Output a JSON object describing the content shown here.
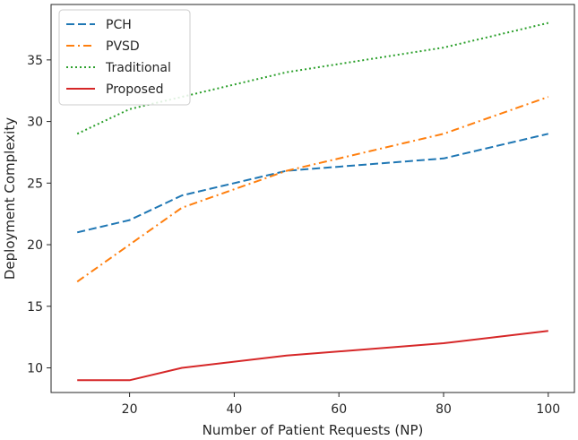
{
  "chart_data": {
    "type": "line",
    "title": "",
    "xlabel": "Number of Patient Requests (NP)",
    "ylabel": "Deployment Complexity",
    "x": [
      10,
      20,
      30,
      50,
      80,
      100
    ],
    "xlim": [
      5,
      105
    ],
    "ylim": [
      8,
      39.5
    ],
    "xticks": [
      20,
      40,
      60,
      80,
      100
    ],
    "yticks": [
      10,
      15,
      20,
      25,
      30,
      35
    ],
    "grid": false,
    "legend_position": "top-left",
    "series": [
      {
        "name": "PCH",
        "values": [
          21,
          22,
          24,
          26,
          27,
          29
        ],
        "color": "#1f77b4",
        "style": "dashed"
      },
      {
        "name": "PVSD",
        "values": [
          17,
          20,
          23,
          26,
          29,
          32
        ],
        "color": "#ff7f0e",
        "style": "dashdot"
      },
      {
        "name": "Traditional",
        "values": [
          29,
          31,
          32,
          34,
          36,
          38
        ],
        "color": "#2ca02c",
        "style": "dotted"
      },
      {
        "name": "Proposed",
        "values": [
          9,
          9,
          10,
          11,
          12,
          13
        ],
        "color": "#d62728",
        "style": "solid"
      }
    ]
  }
}
